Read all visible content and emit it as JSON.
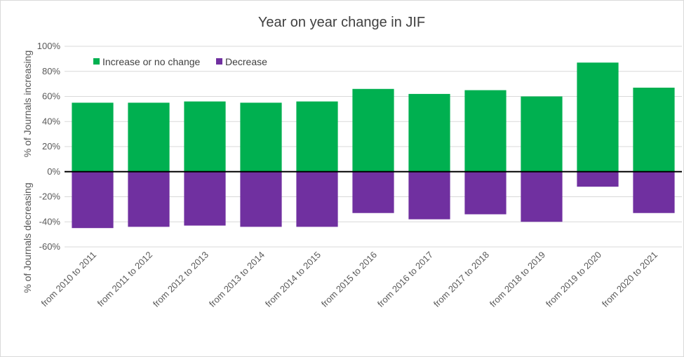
{
  "chart_data": {
    "type": "bar",
    "title": "Year on year change in JIF",
    "ylabel_top": "% of Journals increasing",
    "ylabel_bottom": "% of Journals decreasing",
    "ylim": [
      -60,
      100
    ],
    "yticks": [
      -60,
      -40,
      -20,
      0,
      20,
      40,
      60,
      80,
      100
    ],
    "ytick_labels": [
      "-60%",
      "-40%",
      "-20%",
      "0%",
      "20%",
      "40%",
      "60%",
      "80%",
      "100%"
    ],
    "categories": [
      "from 2010 to 2011",
      "from 2011 to 2012",
      "from 2012 to 2013",
      "from 2013 to 2014",
      "from 2014 to 2015",
      "from 2015 to 2016",
      "from 2016 to 2017",
      "from 2017 to 2018",
      "from 2018 to 2019",
      "from 2019 to 2020",
      "from 2020 to 2021"
    ],
    "series": [
      {
        "name": "Increase or no change",
        "color": "#00b050",
        "values": [
          55,
          55,
          56,
          55,
          56,
          66,
          62,
          65,
          60,
          87,
          67
        ]
      },
      {
        "name": "Decrease",
        "color": "#7030a0",
        "values": [
          -45,
          -44,
          -43,
          -44,
          -44,
          -33,
          -38,
          -34,
          -40,
          -12,
          -33
        ]
      }
    ],
    "legend_position": "top-left",
    "grid": true
  }
}
